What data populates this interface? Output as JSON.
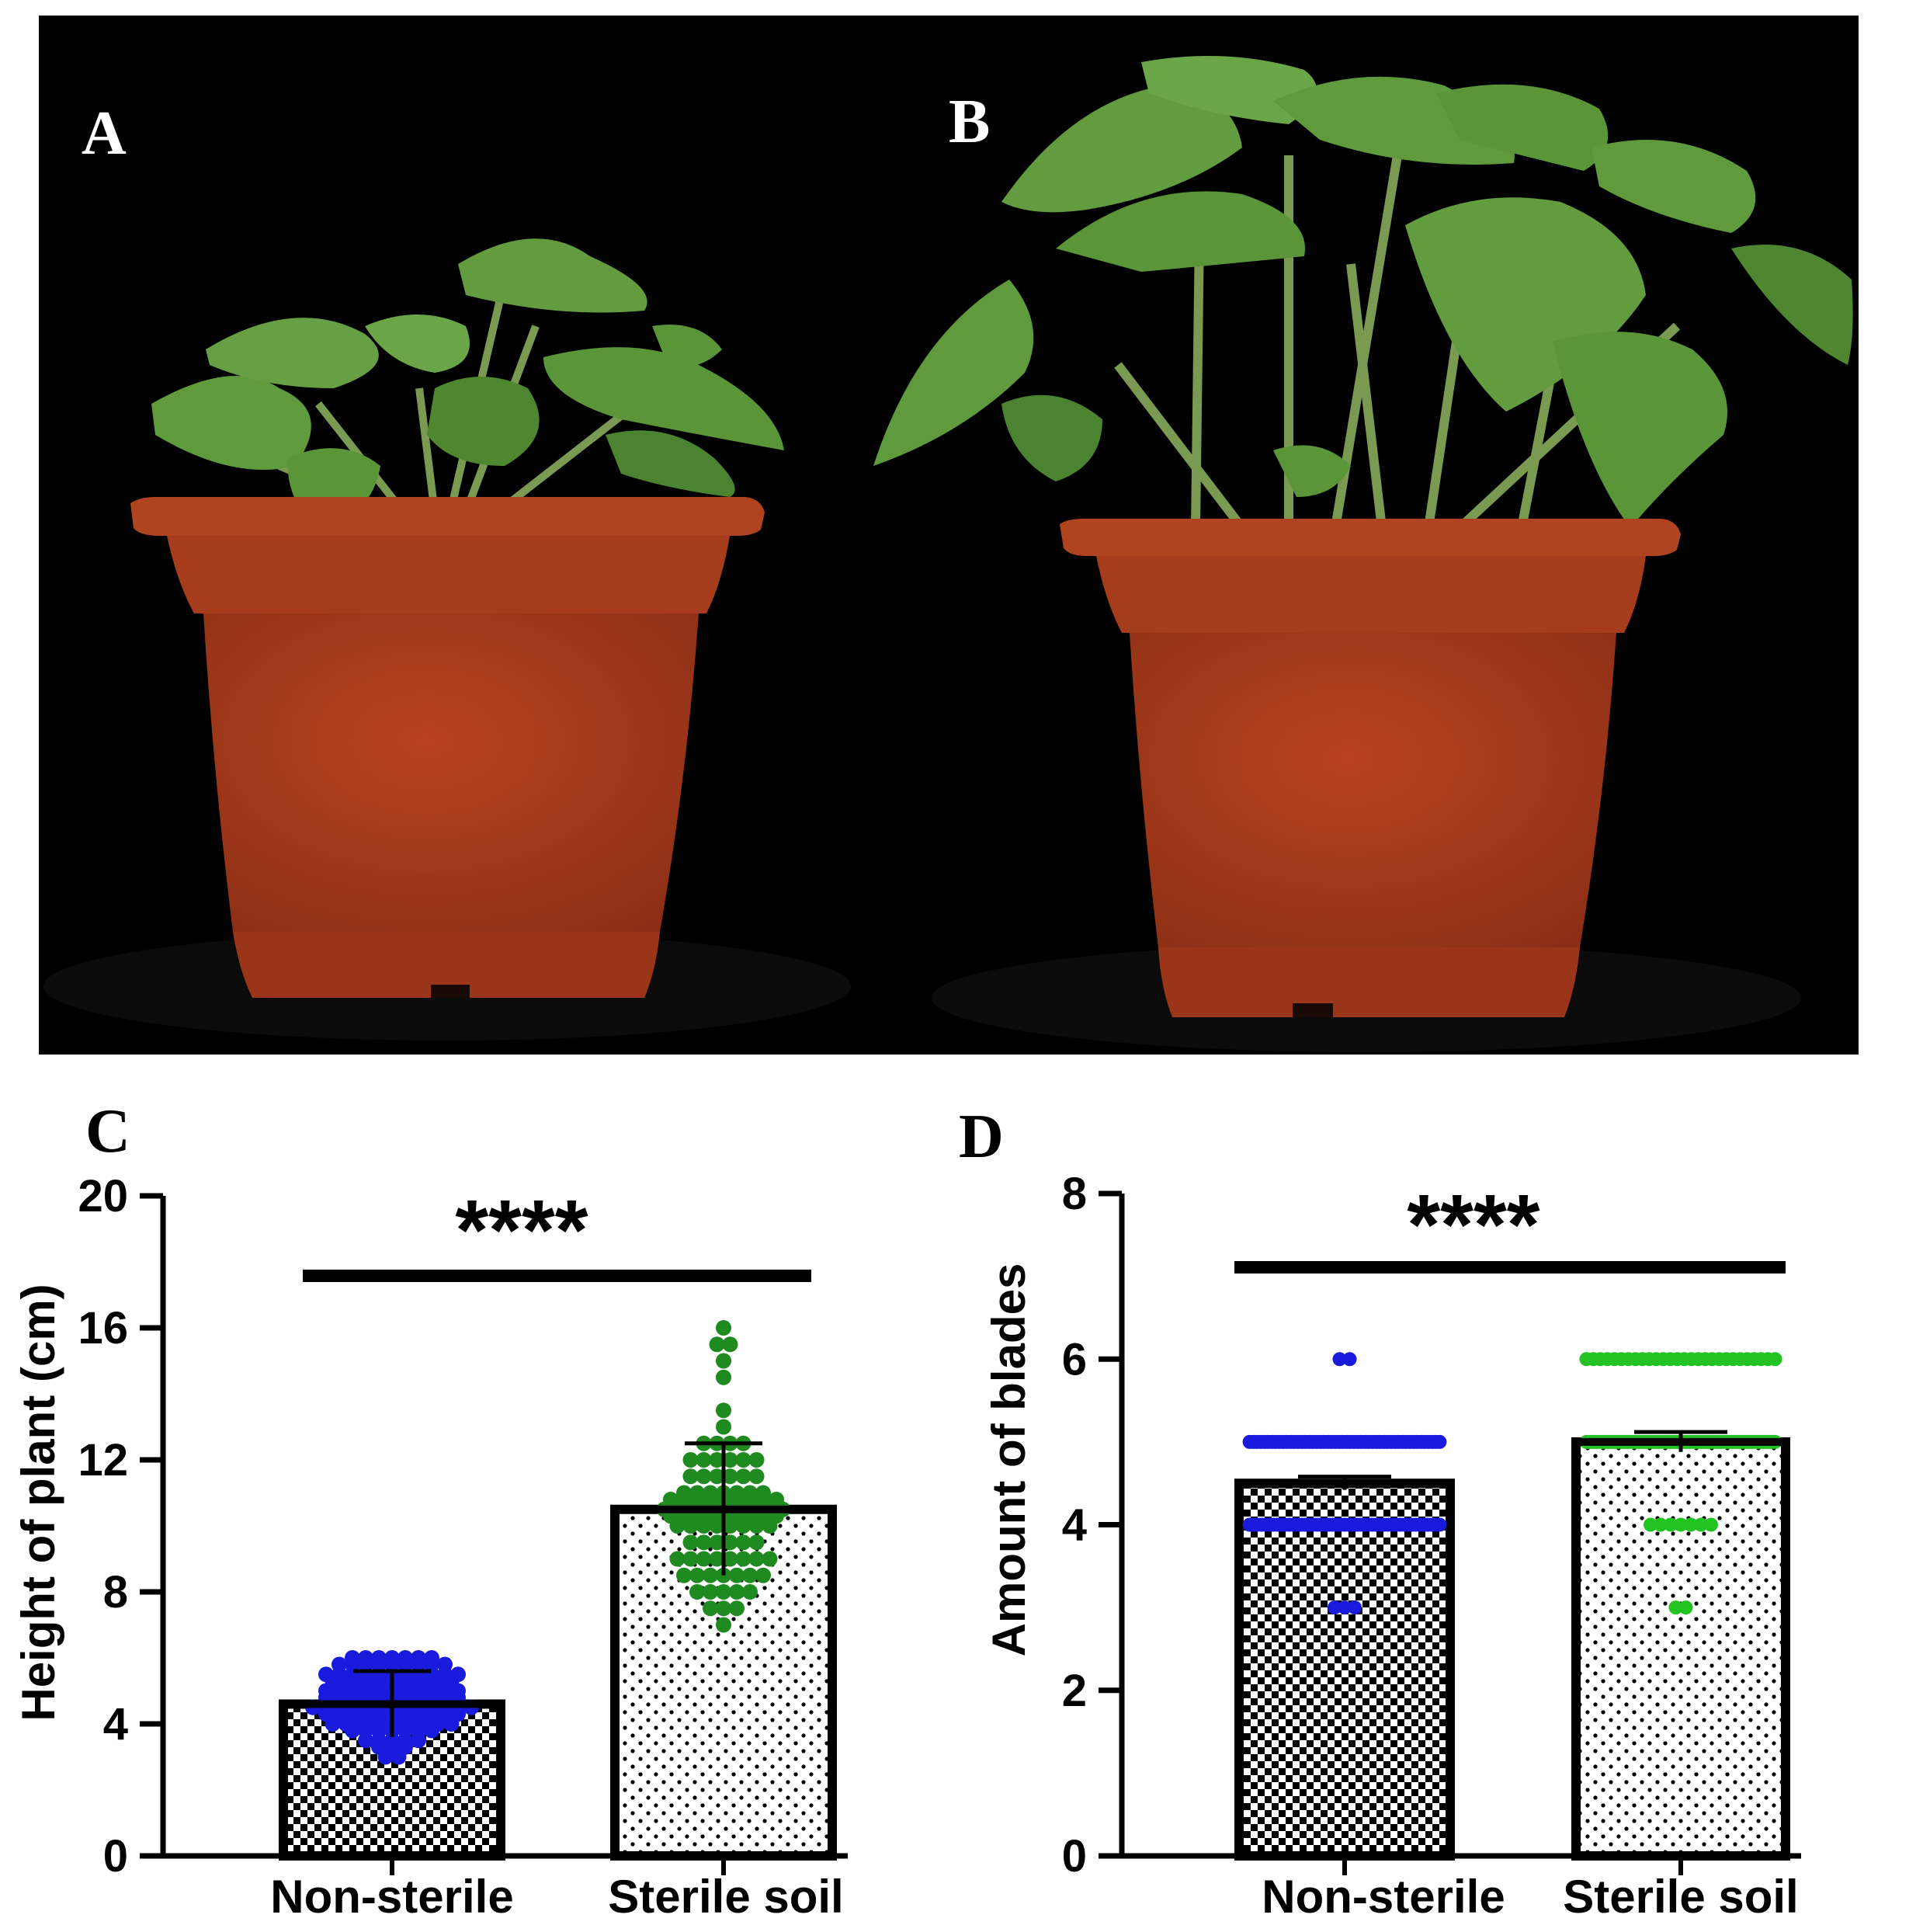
{
  "panels": {
    "a": {
      "letter": "A"
    },
    "b": {
      "letter": "B"
    },
    "c": {
      "letter": "C"
    },
    "d": {
      "letter": "D"
    }
  },
  "colors": {
    "background": "#000000",
    "pot": "#a4391c",
    "pot_dark": "#7e2a14",
    "leaf": "#5f9a3d",
    "leaf_dark": "#3f7024",
    "stem": "#7a9a52",
    "non_sterile_points": "#1a1adc",
    "sterile_points_c": "#1f8a1f",
    "sterile_points_d": "#22c322",
    "bar_border": "#000000"
  },
  "chart_data": [
    {
      "panel": "C",
      "type": "bar",
      "categories": [
        "Non-sterile",
        "Sterile soil"
      ],
      "values": [
        4.6,
        10.5
      ],
      "error_sd": [
        1.0,
        2.0
      ],
      "ylabel": "Height of plant (cm)",
      "ylim": [
        0,
        20
      ],
      "yticks": [
        0,
        4,
        8,
        12,
        16,
        20
      ],
      "significance": "****",
      "bar_fill": [
        "checkerboard",
        "dotted"
      ],
      "points": [
        [
          3.0,
          3.0,
          3.3,
          3.3,
          3.3,
          3.5,
          3.5,
          3.5,
          3.5,
          3.5,
          3.8,
          3.8,
          3.8,
          3.8,
          3.8,
          3.8,
          3.8,
          4.0,
          4.0,
          4.0,
          4.0,
          4.0,
          4.0,
          4.0,
          4.0,
          4.0,
          4.0,
          4.3,
          4.3,
          4.3,
          4.3,
          4.3,
          4.3,
          4.3,
          4.3,
          4.3,
          4.3,
          4.3,
          4.5,
          4.5,
          4.5,
          4.5,
          4.5,
          4.5,
          4.5,
          4.5,
          4.5,
          4.5,
          4.5,
          4.5,
          4.5,
          4.8,
          4.8,
          4.8,
          4.8,
          4.8,
          4.8,
          4.8,
          4.8,
          4.8,
          4.8,
          4.8,
          5.0,
          5.0,
          5.0,
          5.0,
          5.0,
          5.0,
          5.0,
          5.0,
          5.0,
          5.0,
          5.0,
          5.3,
          5.3,
          5.3,
          5.3,
          5.3,
          5.3,
          5.3,
          5.3,
          5.3,
          5.3,
          5.5,
          5.5,
          5.5,
          5.5,
          5.5,
          5.5,
          5.5,
          5.5,
          5.5,
          5.5,
          5.5,
          5.8,
          5.8,
          5.8,
          5.8,
          5.8,
          5.8,
          5.8,
          5.8,
          5.8,
          6.0,
          6.0,
          6.0,
          6.0,
          6.0,
          6.0,
          6.0
        ],
        [
          7.0,
          7.5,
          7.5,
          7.5,
          8.0,
          8.0,
          8.0,
          8.0,
          8.0,
          8.5,
          8.5,
          8.5,
          8.5,
          8.5,
          8.5,
          8.5,
          9.0,
          9.0,
          9.0,
          9.0,
          9.0,
          9.0,
          9.0,
          9.0,
          9.5,
          9.5,
          9.5,
          9.5,
          9.5,
          9.5,
          10.0,
          10.0,
          10.0,
          10.0,
          10.0,
          10.0,
          10.0,
          10.0,
          10.3,
          10.3,
          10.3,
          10.3,
          10.3,
          10.3,
          10.3,
          10.3,
          10.3,
          10.5,
          10.5,
          10.5,
          10.5,
          10.5,
          10.5,
          10.5,
          10.5,
          10.5,
          10.5,
          10.8,
          10.8,
          10.8,
          10.8,
          10.8,
          10.8,
          10.8,
          10.8,
          10.8,
          11.0,
          11.0,
          11.0,
          11.0,
          11.0,
          11.0,
          11.0,
          11.5,
          11.5,
          11.5,
          11.5,
          11.5,
          11.5,
          12.0,
          12.0,
          12.0,
          12.0,
          12.0,
          12.0,
          12.5,
          12.5,
          12.5,
          12.5,
          13.0,
          13.5,
          14.5,
          15.0,
          15.5,
          15.5,
          16.0
        ]
      ]
    },
    {
      "panel": "D",
      "type": "bar",
      "categories": [
        "Non-sterile",
        "Sterile soil"
      ],
      "values": [
        4.5,
        5.0
      ],
      "error_sd": [
        0.08,
        0.12
      ],
      "ylabel": "Amount of blades",
      "ylim": [
        0,
        8
      ],
      "yticks": [
        0,
        2,
        4,
        6,
        8
      ],
      "significance": "****",
      "bar_fill": [
        "checkerboard",
        "dotted"
      ],
      "points": [
        [
          3,
          3,
          3,
          4,
          4,
          4,
          4,
          4,
          4,
          4,
          4,
          4,
          4,
          4,
          4,
          4,
          4,
          4,
          4,
          4,
          4,
          4,
          4,
          4,
          4,
          4,
          4,
          4,
          4,
          4,
          4,
          4,
          4,
          4,
          4,
          4,
          4,
          4,
          4,
          4,
          4,
          4,
          4,
          4,
          4,
          4,
          4,
          4,
          4,
          4,
          4,
          4,
          5,
          5,
          5,
          5,
          5,
          5,
          5,
          5,
          5,
          5,
          5,
          5,
          5,
          5,
          5,
          5,
          5,
          5,
          5,
          5,
          5,
          5,
          5,
          5,
          5,
          5,
          5,
          5,
          5,
          5,
          5,
          5,
          5,
          5,
          5,
          5,
          5,
          5,
          5,
          5,
          5,
          5,
          5,
          5,
          5,
          5,
          5,
          5,
          5,
          5,
          5,
          5,
          6,
          6
        ],
        [
          3,
          3,
          4,
          4,
          4,
          4,
          4,
          4,
          4,
          5,
          5,
          5,
          5,
          5,
          5,
          5,
          5,
          5,
          5,
          5,
          5,
          5,
          5,
          5,
          5,
          5,
          5,
          5,
          5,
          5,
          5,
          5,
          5,
          5,
          5,
          5,
          5,
          5,
          5,
          5,
          5,
          5,
          5,
          5,
          5,
          5,
          5,
          5,
          5,
          5,
          5,
          5,
          5,
          5,
          5,
          5,
          5,
          5,
          5,
          5,
          5,
          5,
          5,
          5,
          5,
          5,
          5,
          5,
          5,
          5,
          5,
          5,
          5,
          5,
          5,
          5,
          5,
          6,
          6,
          6,
          6,
          6,
          6,
          6,
          6,
          6,
          6,
          6,
          6,
          6,
          6,
          6,
          6,
          6,
          6,
          6,
          6,
          6,
          6,
          6,
          6,
          6,
          6,
          6,
          6
        ]
      ]
    }
  ]
}
